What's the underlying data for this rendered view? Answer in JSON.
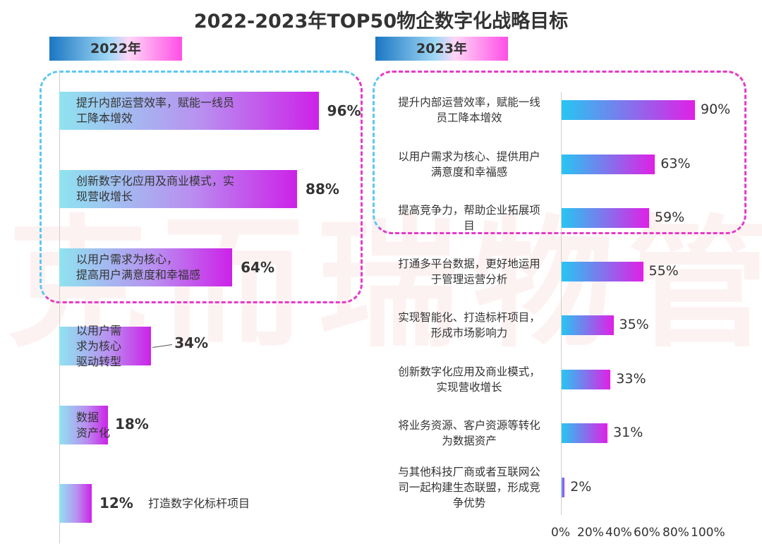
{
  "title": "2022-2023年TOP50物企数字化战略目标",
  "watermark": "克而瑞物管",
  "colors": {
    "bar_start": "#8fe3f0",
    "bar_mid": "#b98ff0",
    "bar_end": "#cc22e8",
    "rbar_start": "#26c6f2",
    "rbar_end": "#e020e6",
    "box_left": "#5cc8f2",
    "box_right": "#e63ac8",
    "tag_start": "#1a76c2",
    "tag_end": "#ff4fe6"
  },
  "chart_data": [
    {
      "type": "bar",
      "year_label": "2022年",
      "categories": [
        "提升内部运营效率，赋能一线员工降本增效",
        "创新数字化应用及商业模式，实现营收增长",
        "以用户需求为核心，提高用户满意度和幸福感",
        "以用户需求为核心驱动转型",
        "数据资产化",
        "打造数字化标杆项目"
      ],
      "label_lines": [
        [
          "提升内部运营效率，赋能一线员",
          "工降本增效"
        ],
        [
          "创新数字化应用及商业模式，实",
          "现营收增长"
        ],
        [
          "以用户需求为核心，",
          "提高用户满意度和幸福感"
        ],
        [
          "以用户需",
          "求为核心",
          "驱动转型"
        ],
        [
          "数据",
          "资产化"
        ],
        [
          "打造数字化标杆项目"
        ]
      ],
      "values": [
        96,
        88,
        64,
        34,
        18,
        12
      ],
      "value_labels": [
        "96%",
        "88%",
        "64%",
        "34%",
        "18%",
        "12%"
      ],
      "highlighted_top": 3
    },
    {
      "type": "bar",
      "year_label": "2023年",
      "categories": [
        "提升内部运营效率，赋能一线员工降本增效",
        "以用户需求为核心、提供用户满意度和幸福感",
        "提高竞争力，帮助企业拓展项目",
        "打通多平台数据，更好地运用于管理运营分析",
        "实现智能化、打造标杆项目，形成市场影响力",
        "创新数字化应用及商业模式，实现营收增长",
        "将业务资源、客户资源等转化为数据资产",
        "与其他科技厂商或者互联网公司一起构建生态联盟，形成竞争优势"
      ],
      "label_lines": [
        [
          "提升内部运营效率，赋能一线",
          "员工降本增效"
        ],
        [
          "以用户需求为核心、提供用户",
          "满意度和幸福感"
        ],
        [
          "提高竞争力，帮助企业拓展项",
          "目"
        ],
        [
          "打通多平台数据，更好地运用",
          "于管理运营分析"
        ],
        [
          "实现智能化、打造标杆项目，",
          "形成市场影响力"
        ],
        [
          "创新数字化应用及商业模式，",
          "实现营收增长"
        ],
        [
          "将业务资源、客户资源等转化",
          "为数据资产"
        ],
        [
          "与其他科技厂商或者互联网公",
          "司一起构建生态联盟，形成竞",
          "争优势"
        ]
      ],
      "values": [
        90,
        63,
        59,
        55,
        35,
        33,
        31,
        2
      ],
      "value_labels": [
        "90%",
        "63%",
        "59%",
        "55%",
        "35%",
        "33%",
        "31%",
        "2%"
      ],
      "xaxis_ticks": [
        "0%",
        "20%",
        "40%",
        "60%",
        "80%",
        "100%"
      ],
      "xlim": [
        0,
        100
      ],
      "highlighted_top": 3
    }
  ]
}
